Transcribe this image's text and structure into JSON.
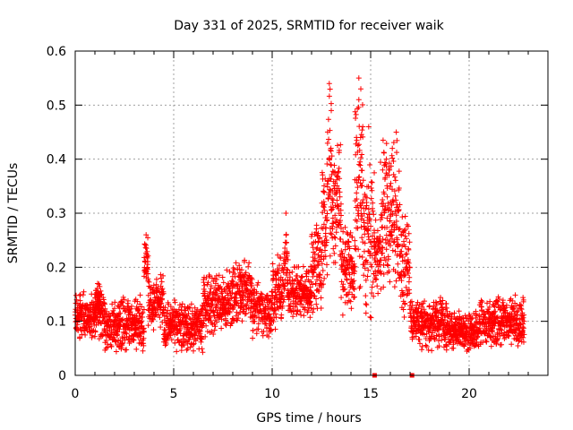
{
  "chart_data": {
    "type": "scatter",
    "title": "Day 331 of 2025, SRMTID for receiver waik",
    "xlabel": "GPS time / hours",
    "ylabel": "SRMTID / TECUs",
    "xlim": [
      0,
      24
    ],
    "ylim": [
      0,
      0.6
    ],
    "xticks": [
      0,
      5,
      10,
      15,
      20
    ],
    "xtick_labels": [
      "0",
      "5",
      "10",
      "15",
      "20"
    ],
    "yticks": [
      0,
      0.1,
      0.2,
      0.3,
      0.4,
      0.5,
      0.6
    ],
    "ytick_labels": [
      "0",
      "0.1",
      "0.2",
      "0.3",
      "0.4",
      "0.5",
      "0.6"
    ],
    "grid": true,
    "marker": "+",
    "marker_color": "#ff0000",
    "sample_interval_hours": 0.01,
    "series": [
      {
        "name": "SRMTID",
        "color": "#ff0000",
        "segments": [
          {
            "x_start": 0.0,
            "x_end": 1.5,
            "y_min": 0.06,
            "y_max": 0.16
          },
          {
            "x_start": 1.0,
            "x_end": 1.3,
            "y_min": 0.1,
            "y_max": 0.19
          },
          {
            "x_start": 1.5,
            "x_end": 3.5,
            "y_min": 0.04,
            "y_max": 0.15
          },
          {
            "x_start": 3.5,
            "x_end": 3.7,
            "y_min": 0.17,
            "y_max": 0.26
          },
          {
            "x_start": 3.7,
            "x_end": 4.5,
            "y_min": 0.08,
            "y_max": 0.19
          },
          {
            "x_start": 4.5,
            "x_end": 6.5,
            "y_min": 0.04,
            "y_max": 0.14
          },
          {
            "x_start": 6.5,
            "x_end": 8.0,
            "y_min": 0.07,
            "y_max": 0.2
          },
          {
            "x_start": 8.0,
            "x_end": 9.0,
            "y_min": 0.09,
            "y_max": 0.22
          },
          {
            "x_start": 9.0,
            "x_end": 10.0,
            "y_min": 0.06,
            "y_max": 0.18
          },
          {
            "x_start": 10.0,
            "x_end": 10.6,
            "y_min": 0.08,
            "y_max": 0.23
          },
          {
            "x_start": 10.6,
            "x_end": 10.8,
            "y_min": 0.12,
            "y_max": 0.3
          },
          {
            "x_start": 10.8,
            "x_end": 12.0,
            "y_min": 0.1,
            "y_max": 0.21
          },
          {
            "x_start": 12.0,
            "x_end": 12.5,
            "y_min": 0.1,
            "y_max": 0.3
          },
          {
            "x_start": 12.5,
            "x_end": 12.8,
            "y_min": 0.15,
            "y_max": 0.41
          },
          {
            "x_start": 12.8,
            "x_end": 13.0,
            "y_min": 0.2,
            "y_max": 0.54
          },
          {
            "x_start": 13.0,
            "x_end": 13.5,
            "y_min": 0.2,
            "y_max": 0.45
          },
          {
            "x_start": 13.5,
            "x_end": 14.2,
            "y_min": 0.1,
            "y_max": 0.3
          },
          {
            "x_start": 14.2,
            "x_end": 14.6,
            "y_min": 0.15,
            "y_max": 0.55
          },
          {
            "x_start": 14.6,
            "x_end": 15.2,
            "y_min": 0.1,
            "y_max": 0.4
          },
          {
            "x_start": 15.2,
            "x_end": 15.5,
            "y_min": 0.15,
            "y_max": 0.3
          },
          {
            "x_start": 15.5,
            "x_end": 16.5,
            "y_min": 0.15,
            "y_max": 0.45
          },
          {
            "x_start": 16.5,
            "x_end": 17.0,
            "y_min": 0.08,
            "y_max": 0.3
          },
          {
            "x_start": 17.0,
            "x_end": 17.5,
            "y_min": 0.06,
            "y_max": 0.15
          },
          {
            "x_start": 17.5,
            "x_end": 19.0,
            "y_min": 0.04,
            "y_max": 0.15
          },
          {
            "x_start": 19.0,
            "x_end": 20.5,
            "y_min": 0.04,
            "y_max": 0.12
          },
          {
            "x_start": 20.5,
            "x_end": 22.8,
            "y_min": 0.05,
            "y_max": 0.15
          }
        ],
        "spikes": [
          {
            "x": 3.6,
            "y": 0.26
          },
          {
            "x": 10.7,
            "y": 0.3
          },
          {
            "x": 12.9,
            "y": 0.54
          },
          {
            "x": 13.0,
            "y": 0.49
          },
          {
            "x": 14.4,
            "y": 0.55
          },
          {
            "x": 14.5,
            "y": 0.53
          },
          {
            "x": 14.4,
            "y": 0.51
          },
          {
            "x": 14.6,
            "y": 0.46
          },
          {
            "x": 14.9,
            "y": 0.46
          },
          {
            "x": 16.3,
            "y": 0.45
          },
          {
            "x": 16.1,
            "y": 0.42
          },
          {
            "x": 15.8,
            "y": 0.4
          }
        ],
        "zero_markers": [
          {
            "x": 15.2,
            "y": 0
          },
          {
            "x": 17.1,
            "y": 0
          }
        ]
      }
    ]
  }
}
